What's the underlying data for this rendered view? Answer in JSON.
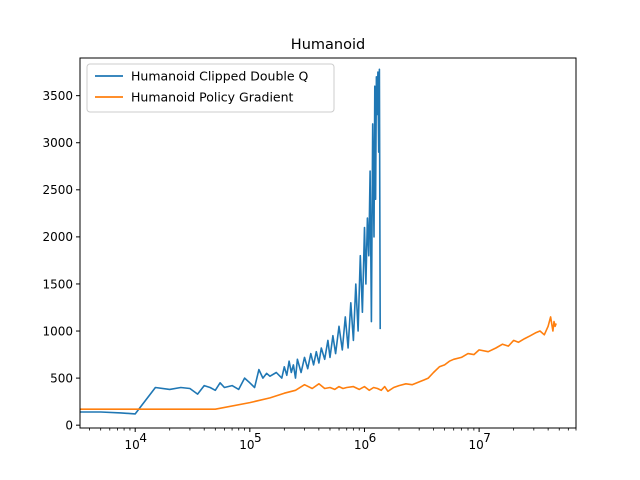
{
  "chart_data": {
    "type": "line",
    "title": "Humanoid",
    "xlabel": "",
    "ylabel": "",
    "x_scale": "log",
    "xlim": [
      3300,
      70000000
    ],
    "ylim": [
      -30,
      3900
    ],
    "grid": false,
    "legend_position": "top-left",
    "x_major_ticks": [
      {
        "value": 10000,
        "base": "10",
        "exp": "4"
      },
      {
        "value": 100000,
        "base": "10",
        "exp": "5"
      },
      {
        "value": 1000000,
        "base": "10",
        "exp": "6"
      },
      {
        "value": 10000000,
        "base": "10",
        "exp": "7"
      }
    ],
    "y_ticks": [
      {
        "value": 0,
        "label": "0"
      },
      {
        "value": 500,
        "label": "500"
      },
      {
        "value": 1000,
        "label": "1000"
      },
      {
        "value": 1500,
        "label": "1500"
      },
      {
        "value": 2000,
        "label": "2000"
      },
      {
        "value": 2500,
        "label": "2500"
      },
      {
        "value": 3000,
        "label": "3000"
      },
      {
        "value": 3500,
        "label": "3500"
      }
    ],
    "series": [
      {
        "name": "Humanoid Clipped Double Q",
        "color": "#1f77b4",
        "x": [
          3300,
          5000,
          7500,
          10000,
          15000,
          20000,
          25000,
          30000,
          35000,
          40000,
          45000,
          50000,
          55000,
          60000,
          70000,
          80000,
          90000,
          100000,
          110000,
          120000,
          130000,
          140000,
          150000,
          170000,
          190000,
          200000,
          210000,
          220000,
          230000,
          240000,
          250000,
          260000,
          280000,
          300000,
          320000,
          340000,
          360000,
          380000,
          400000,
          420000,
          450000,
          480000,
          500000,
          530000,
          560000,
          600000,
          640000,
          680000,
          720000,
          760000,
          800000,
          840000,
          880000,
          920000,
          960000,
          1000000,
          1030000,
          1060000,
          1090000,
          1120000,
          1150000,
          1180000,
          1210000,
          1230000,
          1250000,
          1270000,
          1290000,
          1310000,
          1330000,
          1350000,
          1370000
        ],
        "y": [
          140,
          140,
          130,
          120,
          400,
          380,
          400,
          390,
          330,
          420,
          400,
          370,
          450,
          400,
          420,
          380,
          500,
          450,
          400,
          590,
          500,
          550,
          520,
          560,
          500,
          620,
          530,
          680,
          560,
          640,
          500,
          700,
          560,
          720,
          600,
          760,
          640,
          780,
          660,
          820,
          700,
          900,
          720,
          950,
          760,
          1050,
          800,
          1150,
          820,
          1300,
          900,
          1500,
          1000,
          1800,
          1200,
          2100,
          1500,
          2200,
          1800,
          2700,
          1100,
          3200,
          2000,
          3600,
          2400,
          3700,
          3300,
          3750,
          2900,
          3780,
          1020
        ]
      },
      {
        "name": "Humanoid Policy Gradient",
        "color": "#ff7f0e",
        "x": [
          3300,
          10000,
          50000,
          100000,
          150000,
          200000,
          250000,
          300000,
          350000,
          400000,
          450000,
          500000,
          550000,
          600000,
          650000,
          700000,
          800000,
          900000,
          1000000,
          1100000,
          1200000,
          1300000,
          1400000,
          1500000,
          1600000,
          1800000,
          2000000,
          2300000,
          2600000,
          3000000,
          3300000,
          3600000,
          4000000,
          4500000,
          5000000,
          5500000,
          6000000,
          7000000,
          8000000,
          9000000,
          10000000,
          12000000,
          14000000,
          16000000,
          18000000,
          20000000,
          22000000,
          25000000,
          28000000,
          31000000,
          34000000,
          37000000,
          40000000,
          42000000,
          44000000,
          45000000,
          46000000,
          47000000
        ],
        "y": [
          170,
          170,
          170,
          240,
          290,
          340,
          370,
          430,
          390,
          440,
          390,
          400,
          380,
          410,
          390,
          400,
          410,
          380,
          410,
          370,
          400,
          390,
          370,
          410,
          360,
          400,
          420,
          440,
          430,
          460,
          480,
          500,
          560,
          620,
          640,
          680,
          700,
          720,
          760,
          750,
          800,
          780,
          820,
          860,
          840,
          900,
          880,
          920,
          950,
          980,
          1000,
          960,
          1050,
          1150,
          1000,
          1100,
          1050,
          1080
        ]
      }
    ]
  }
}
